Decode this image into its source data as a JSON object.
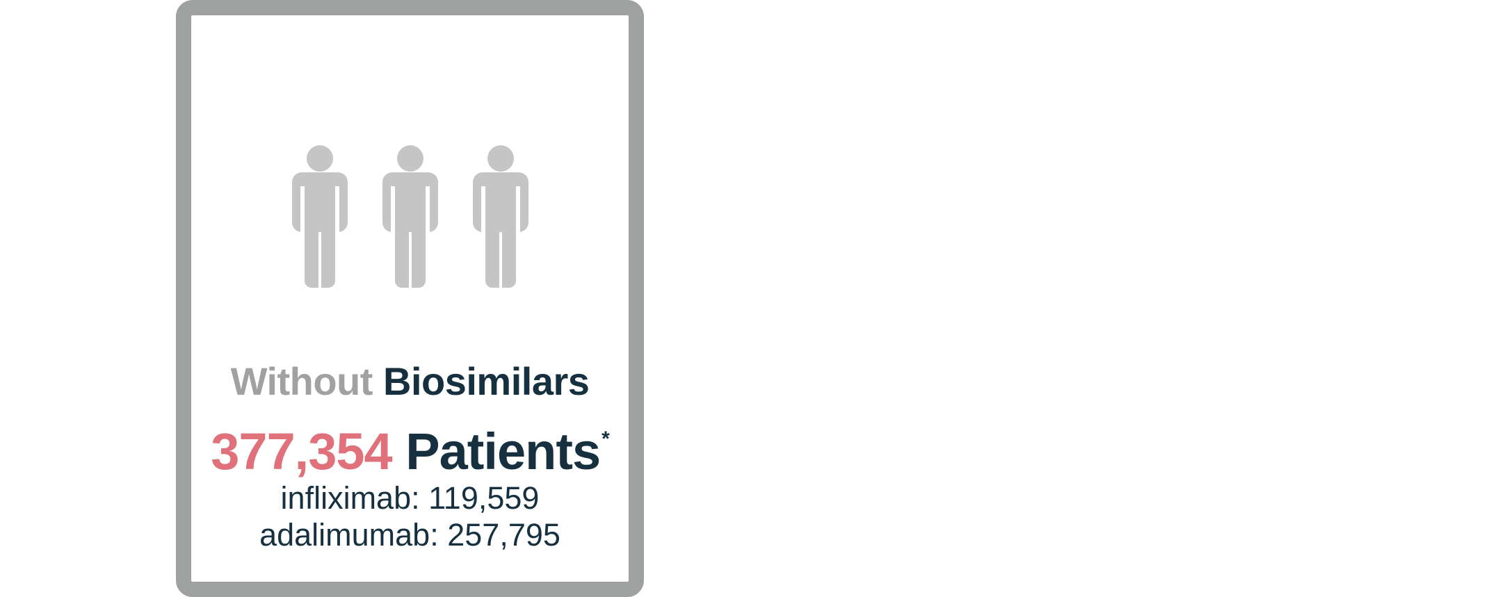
{
  "card": {
    "heading_muted": "Without",
    "heading_dark": "Biosimilars",
    "count_number": "377,354",
    "count_label": "Patients",
    "count_footnote": "*",
    "breakdown": [
      {
        "drug": "infliximab",
        "value": "119,559"
      },
      {
        "drug": "adalimumab",
        "value": "257,795"
      }
    ],
    "figure_icon": "person-icon",
    "figure_count": 3
  },
  "colors": {
    "border": "#9fa1a0",
    "muted_text": "#a0a2a1",
    "dark_text": "#163040",
    "accent": "#e07079",
    "figure": "#c4c5c4"
  }
}
